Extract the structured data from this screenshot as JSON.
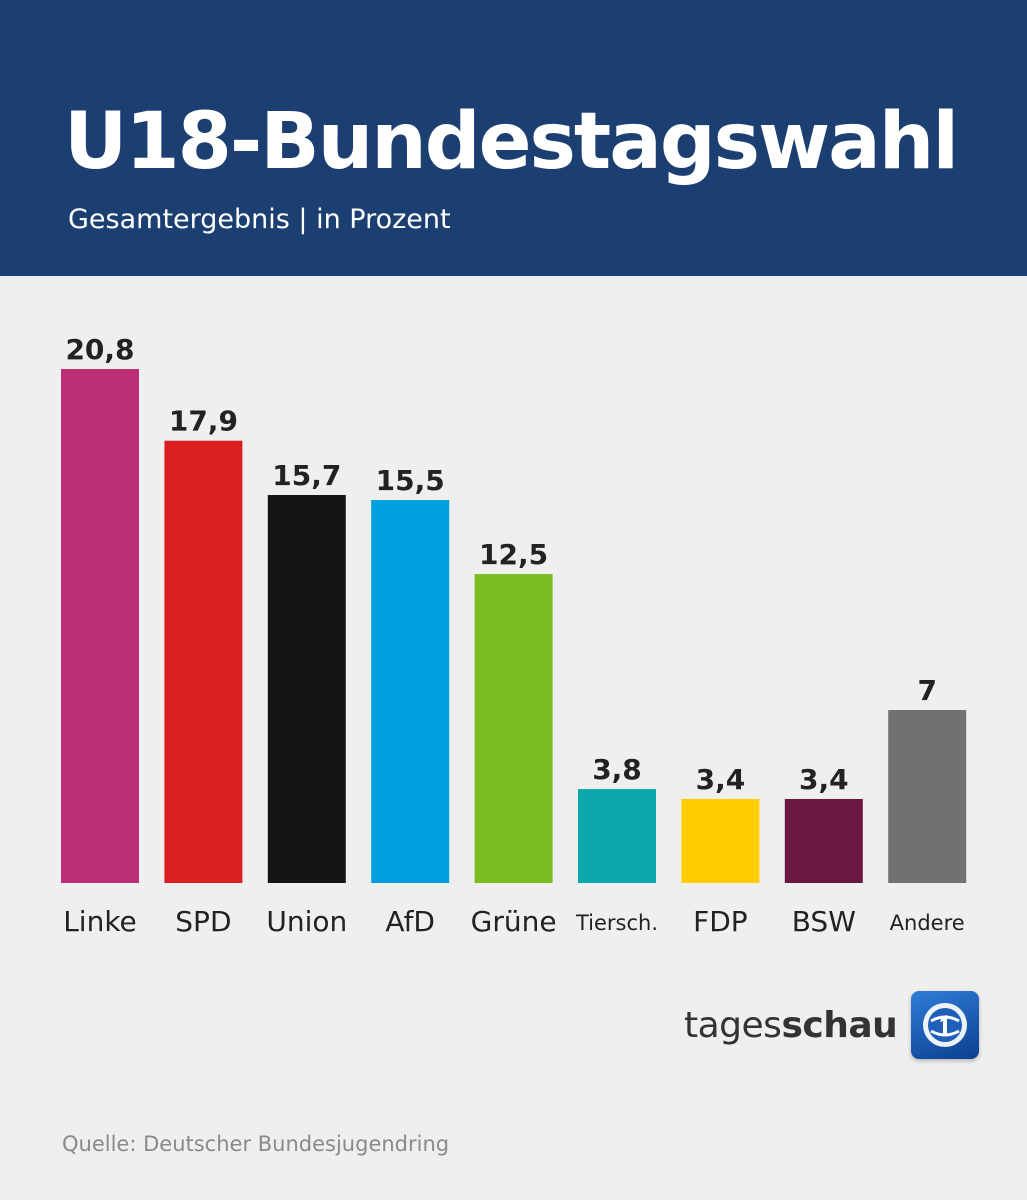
{
  "header": {
    "title": "U18-Bundestagswahl",
    "subtitle": "Gesamtergebnis | in Prozent"
  },
  "chart_data": {
    "type": "bar",
    "title": "U18-Bundestagswahl",
    "subtitle": "Gesamtergebnis | in Prozent",
    "xlabel": "",
    "ylabel": "",
    "ylim": [
      0,
      20.8
    ],
    "grid": false,
    "categories": [
      "Linke",
      "SPD",
      "Union",
      "AfD",
      "Grüne",
      "Tiersch.",
      "FDP",
      "BSW",
      "Andere"
    ],
    "values": [
      20.8,
      17.9,
      15.7,
      15.5,
      12.5,
      3.8,
      3.4,
      3.4,
      7
    ],
    "value_labels": [
      "20,8",
      "17,9",
      "15,7",
      "15,5",
      "12,5",
      "3,8",
      "3,4",
      "3,4",
      "7"
    ],
    "colors": [
      "#bd2f75",
      "#d91f1f",
      "#151515",
      "#009fe0",
      "#78bd1f",
      "#0aa8ad",
      "#ffcc00",
      "#6a1742",
      "#707172"
    ]
  },
  "branding": {
    "logo_prefix": "tages",
    "logo_suffix": "schau",
    "logo_icon": "tagesschau-globe-icon"
  },
  "footer": {
    "source": "Quelle: Deutscher Bundesjugendring"
  }
}
